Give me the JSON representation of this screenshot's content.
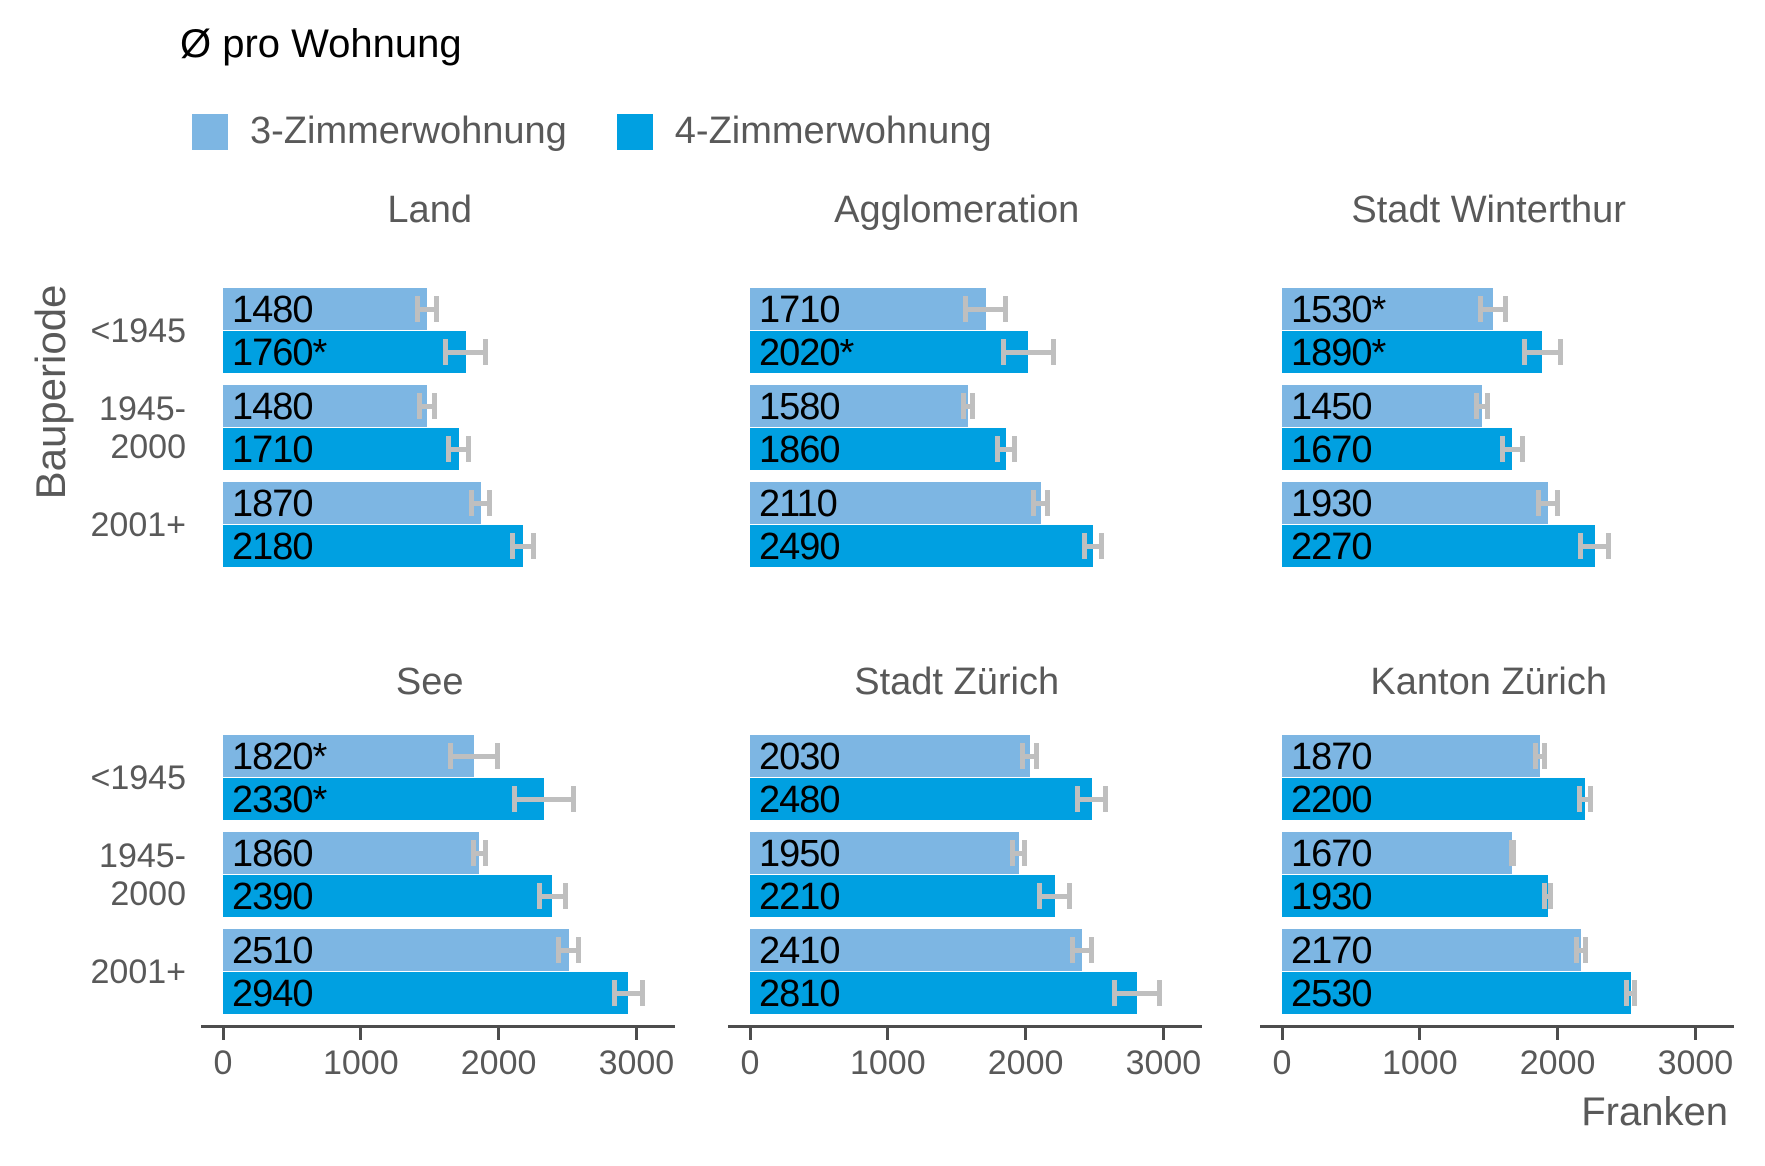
{
  "title": "Ø pro Wohnung",
  "legend": {
    "items": [
      {
        "label": "3-Zimmerwohnung",
        "series": "s3"
      },
      {
        "label": "4-Zimmerwohnung",
        "series": "s4"
      }
    ]
  },
  "y_axis_label": "Bauperiode",
  "x_axis_label": "Franken",
  "colors": {
    "series3": "#7db6e3",
    "series4": "#00a0e1",
    "error_bar": "#bfbfbf",
    "axis": "#4d4d4d",
    "muted_text": "#595959",
    "value_text": "#000000"
  },
  "chart_data": {
    "type": "bar",
    "orientation": "horizontal-grouped",
    "unit": "Franken",
    "series_names": [
      "3-Zimmerwohnung",
      "4-Zimmerwohnung"
    ],
    "categories": [
      "<1945",
      "1945-\n2000",
      "2001+"
    ],
    "x_ticks": [
      "0",
      "1000",
      "2000",
      "3000"
    ],
    "x_tick_values": [
      0,
      1000,
      2000,
      3000
    ],
    "xlim": [
      0,
      3270
    ],
    "note": "moe = estimated error-bar half-width read from pixels; * marker as printed in bar labels",
    "panels": [
      {
        "title": "Land",
        "row": 0,
        "col": 0,
        "groups": [
          {
            "s3": {
              "value": 1480,
              "label": "1480",
              "moe": 85
            },
            "s4": {
              "value": 1760,
              "label": "1760*",
              "moe": 160
            }
          },
          {
            "s3": {
              "value": 1480,
              "label": "1480",
              "moe": 75
            },
            "s4": {
              "value": 1710,
              "label": "1710",
              "moe": 90
            }
          },
          {
            "s3": {
              "value": 1870,
              "label": "1870",
              "moe": 85
            },
            "s4": {
              "value": 2180,
              "label": "2180",
              "moe": 95
            }
          }
        ]
      },
      {
        "title": "Agglomeration",
        "row": 0,
        "col": 1,
        "groups": [
          {
            "s3": {
              "value": 1710,
              "label": "1710",
              "moe": 165
            },
            "s4": {
              "value": 2020,
              "label": "2020*",
              "moe": 200
            }
          },
          {
            "s3": {
              "value": 1580,
              "label": "1580",
              "moe": 50
            },
            "s4": {
              "value": 1860,
              "label": "1860",
              "moe": 80
            }
          },
          {
            "s3": {
              "value": 2110,
              "label": "2110",
              "moe": 70
            },
            "s4": {
              "value": 2490,
              "label": "2490",
              "moe": 80
            }
          }
        ]
      },
      {
        "title": "Stadt Winterthur",
        "row": 0,
        "col": 2,
        "groups": [
          {
            "s3": {
              "value": 1530,
              "label": "1530*",
              "moe": 110
            },
            "s4": {
              "value": 1890,
              "label": "1890*",
              "moe": 150
            }
          },
          {
            "s3": {
              "value": 1450,
              "label": "1450",
              "moe": 60
            },
            "s4": {
              "value": 1670,
              "label": "1670",
              "moe": 90
            }
          },
          {
            "s3": {
              "value": 1930,
              "label": "1930",
              "moe": 90
            },
            "s4": {
              "value": 2270,
              "label": "2270",
              "moe": 120
            }
          }
        ]
      },
      {
        "title": "See",
        "row": 1,
        "col": 0,
        "groups": [
          {
            "s3": {
              "value": 1820,
              "label": "1820*",
              "moe": 190
            },
            "s4": {
              "value": 2330,
              "label": "2330*",
              "moe": 230
            }
          },
          {
            "s3": {
              "value": 1860,
              "label": "1860",
              "moe": 60
            },
            "s4": {
              "value": 2390,
              "label": "2390",
              "moe": 110
            }
          },
          {
            "s3": {
              "value": 2510,
              "label": "2510",
              "moe": 90
            },
            "s4": {
              "value": 2940,
              "label": "2940",
              "moe": 120
            }
          }
        ]
      },
      {
        "title": "Stadt Zürich",
        "row": 1,
        "col": 1,
        "groups": [
          {
            "s3": {
              "value": 2030,
              "label": "2030",
              "moe": 70
            },
            "s4": {
              "value": 2480,
              "label": "2480",
              "moe": 120
            }
          },
          {
            "s3": {
              "value": 1950,
              "label": "1950",
              "moe": 60
            },
            "s4": {
              "value": 2210,
              "label": "2210",
              "moe": 130
            }
          },
          {
            "s3": {
              "value": 2410,
              "label": "2410",
              "moe": 85
            },
            "s4": {
              "value": 2810,
              "label": "2810",
              "moe": 180
            }
          }
        ]
      },
      {
        "title": "Kanton Zürich",
        "row": 1,
        "col": 2,
        "groups": [
          {
            "s3": {
              "value": 1870,
              "label": "1870",
              "moe": 50
            },
            "s4": {
              "value": 2200,
              "label": "2200",
              "moe": 60
            }
          },
          {
            "s3": {
              "value": 1670,
              "label": "1670",
              "moe": 25
            },
            "s4": {
              "value": 1930,
              "label": "1930",
              "moe": 40
            }
          },
          {
            "s3": {
              "value": 2170,
              "label": "2170",
              "moe": 50
            },
            "s4": {
              "value": 2530,
              "label": "2530",
              "moe": 45
            }
          }
        ]
      }
    ]
  }
}
